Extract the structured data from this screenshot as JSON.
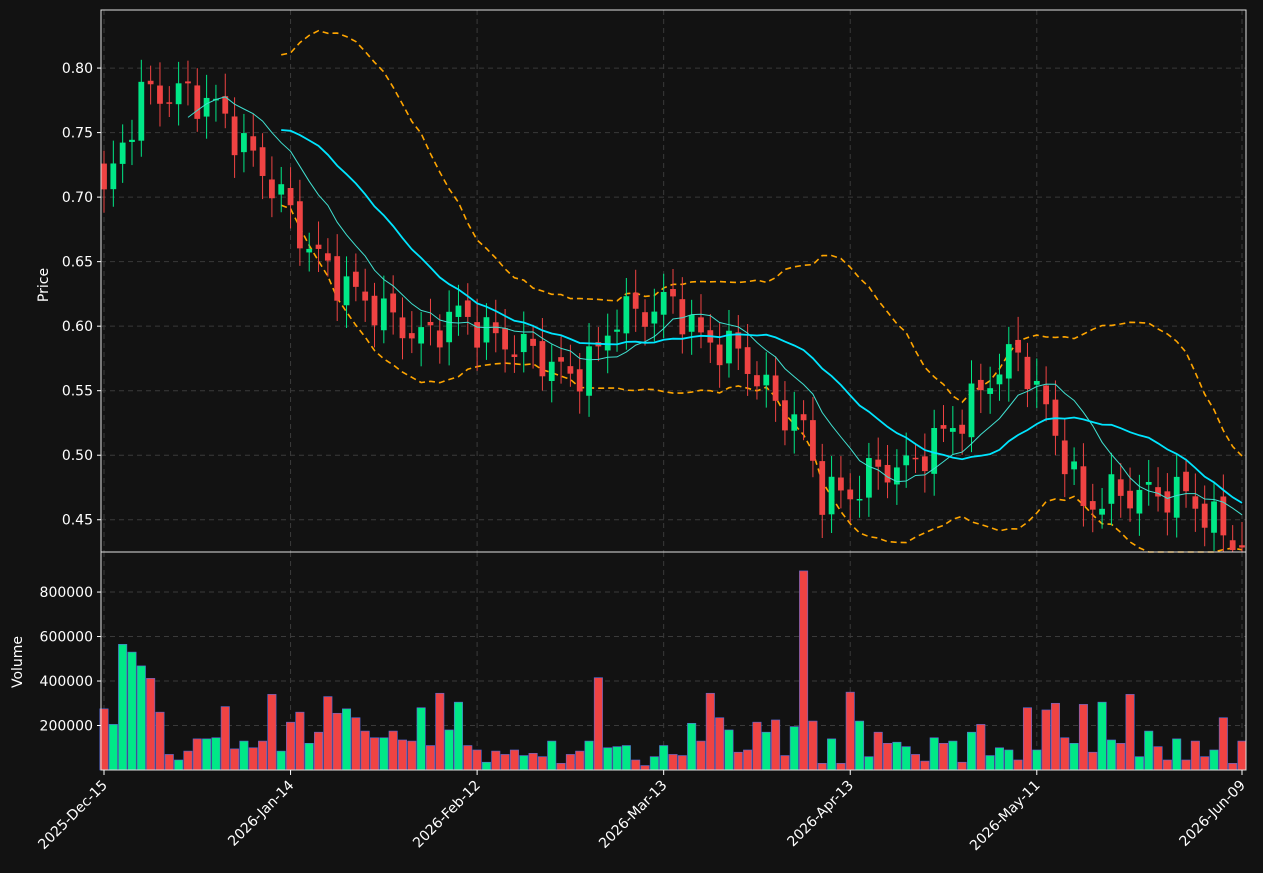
{
  "chart_data": {
    "type": "candlestick",
    "price_panel": {
      "ylabel": "Price",
      "ylim": [
        0.425,
        0.845
      ],
      "yticks": [
        0.45,
        0.5,
        0.55,
        0.6,
        0.65,
        0.7,
        0.75,
        0.8
      ],
      "ytick_labels": [
        "0.45",
        "0.50",
        "0.55",
        "0.60",
        "0.65",
        "0.70",
        "0.75",
        "0.80"
      ],
      "grid": true
    },
    "volume_panel": {
      "ylabel": "Volume",
      "ylim": [
        0,
        980000
      ],
      "yticks": [
        200000,
        400000,
        600000,
        800000
      ],
      "ytick_labels": [
        "200000",
        "400000",
        "600000",
        "800000"
      ],
      "grid": true
    },
    "x_axis": {
      "bar_count": 123,
      "tick_indices": [
        0,
        20,
        40,
        60,
        80,
        100,
        122
      ],
      "tick_labels": [
        "2025-Dec-15",
        "2026-Jan-14",
        "2026-Feb-12",
        "2026-Mar-13",
        "2026-Apr-13",
        "2026-May-11",
        "2026-Jun-09"
      ]
    },
    "colors": {
      "background": "#121212",
      "up": "#00e887",
      "down": "#ef4343",
      "ma_fast": "#40e0d0",
      "ma_slow": "#00e5ff",
      "bands": "#ffa500",
      "grid": "#3a3a3a",
      "text": "#ffffff"
    },
    "key_prices": [
      [
        0,
        0.7
      ],
      [
        4,
        0.78
      ],
      [
        9,
        0.78
      ],
      [
        12,
        0.77
      ],
      [
        16,
        0.73
      ],
      [
        19,
        0.7
      ],
      [
        22,
        0.66
      ],
      [
        26,
        0.63
      ],
      [
        30,
        0.61
      ],
      [
        34,
        0.59
      ],
      [
        38,
        0.61
      ],
      [
        42,
        0.59
      ],
      [
        46,
        0.58
      ],
      [
        50,
        0.56
      ],
      [
        53,
        0.58
      ],
      [
        55,
        0.61
      ],
      [
        58,
        0.61
      ],
      [
        61,
        0.62
      ],
      [
        64,
        0.59
      ],
      [
        68,
        0.58
      ],
      [
        72,
        0.54
      ],
      [
        75,
        0.52
      ],
      [
        77,
        0.47
      ],
      [
        80,
        0.47
      ],
      [
        83,
        0.49
      ],
      [
        86,
        0.49
      ],
      [
        89,
        0.51
      ],
      [
        92,
        0.53
      ],
      [
        95,
        0.56
      ],
      [
        98,
        0.58
      ],
      [
        100,
        0.55
      ],
      [
        103,
        0.5
      ],
      [
        105,
        0.46
      ],
      [
        108,
        0.47
      ],
      [
        112,
        0.47
      ],
      [
        116,
        0.47
      ],
      [
        120,
        0.44
      ],
      [
        122,
        0.43
      ]
    ],
    "volumes": [
      275000,
      205000,
      565000,
      530000,
      468000,
      412000,
      260000,
      70000,
      45000,
      85000,
      140000,
      140000,
      145000,
      285000,
      95000,
      130000,
      100000,
      130000,
      340000,
      85000,
      215000,
      260000,
      120000,
      170000,
      330000,
      255000,
      275000,
      235000,
      175000,
      145000,
      145000,
      175000,
      135000,
      130000,
      280000,
      110000,
      345000,
      180000,
      305000,
      110000,
      90000,
      35000,
      85000,
      70000,
      90000,
      65000,
      75000,
      60000,
      130000,
      30000,
      70000,
      85000,
      130000,
      415000,
      100000,
      105000,
      110000,
      45000,
      20000,
      60000,
      110000,
      70000,
      65000,
      210000,
      130000,
      345000,
      235000,
      180000,
      80000,
      90000,
      215000,
      170000,
      225000,
      65000,
      195000,
      895000,
      220000,
      30000,
      140000,
      30000,
      350000,
      220000,
      60000,
      170000,
      120000,
      125000,
      105000,
      70000,
      40000,
      145000,
      120000,
      130000,
      35000,
      170000,
      205000,
      65000,
      100000,
      90000,
      45000,
      280000,
      90000,
      270000,
      300000,
      145000,
      120000,
      295000,
      80000,
      305000,
      135000,
      120000,
      340000,
      60000,
      175000,
      105000,
      45000,
      140000,
      45000,
      130000,
      60000,
      90000,
      235000,
      30000,
      130000
    ]
  }
}
